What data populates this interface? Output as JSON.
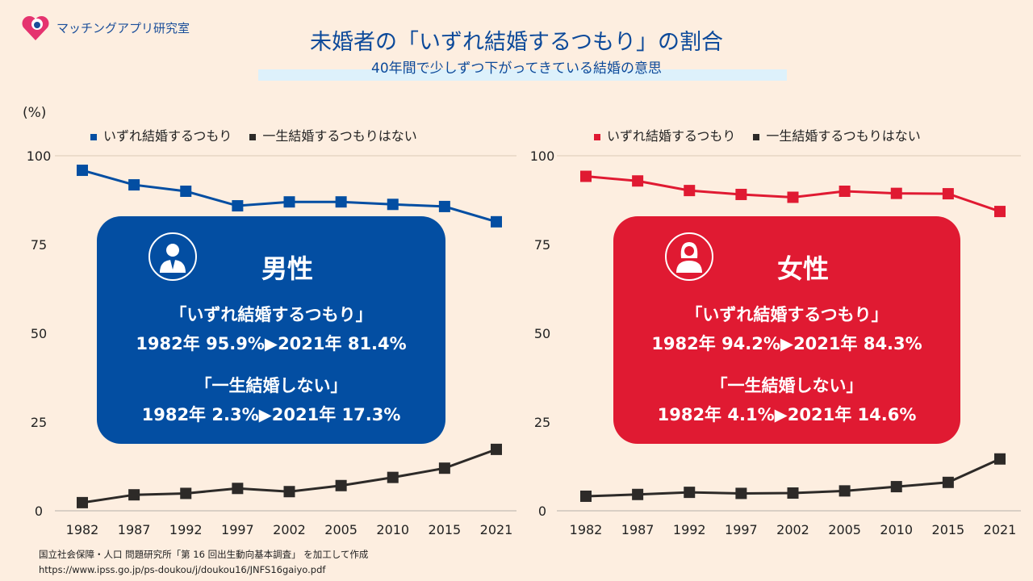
{
  "brand": "マッチングアプリ研究室",
  "title": "未婚者の「いずれ結婚するつもり」の割合",
  "subtitle": "40年間で少しずつ下がってきている結婚の意思",
  "unit": "(%)",
  "colors": {
    "male": "#034ea2",
    "female": "#e01a32",
    "never": "#2d2a28",
    "box_male": "#034ea2",
    "box_female": "#e01a32"
  },
  "male_box": {
    "icon": "man-in-suit-icon",
    "label": "男性",
    "line1": "「いずれ結婚するつもり」",
    "line2": "1982年 95.9%▶2021年 81.4%",
    "line3": "「一生結婚しない」",
    "line4": "1982年 2.3%▶2021年 17.3%"
  },
  "female_box": {
    "icon": "woman-icon",
    "label": "女性",
    "line1": "「いずれ結婚するつもり」",
    "line2": "1982年 94.2%▶2021年 84.3%",
    "line3": "「一生結婚しない」",
    "line4": "1982年 4.1%▶2021年 14.6%"
  },
  "source": {
    "line1": "国立社会保障・人口 問題研究所「第 16 回出生動向基本調査」 を加工して作成",
    "line2": "https://www.ipss.go.jp/ps-doukou/j/doukou16/JNFS16gaiyo.pdf"
  },
  "chart_data": [
    {
      "type": "line",
      "categories": [
        "1982",
        "1987",
        "1992",
        "1997",
        "2002",
        "2005",
        "2010",
        "2015",
        "2021"
      ],
      "ylim": [
        0,
        100
      ],
      "yticks": [
        "0",
        "25",
        "50",
        "75",
        "100"
      ],
      "grid": false,
      "legend": "top",
      "series": [
        {
          "name": "いずれ結婚するつもり",
          "color": "#034ea2",
          "values": [
            95.9,
            91.8,
            90.0,
            85.9,
            87.0,
            87.0,
            86.3,
            85.7,
            81.4
          ]
        },
        {
          "name": "一生結婚するつもりはない",
          "color": "#2d2a28",
          "values": [
            2.3,
            4.5,
            4.9,
            6.3,
            5.4,
            7.1,
            9.4,
            12.0,
            17.3
          ]
        }
      ]
    },
    {
      "type": "line",
      "categories": [
        "1982",
        "1987",
        "1992",
        "1997",
        "2002",
        "2005",
        "2010",
        "2015",
        "2021"
      ],
      "ylim": [
        0,
        100
      ],
      "yticks": [
        "0",
        "25",
        "50",
        "75",
        "100"
      ],
      "grid": false,
      "legend": "top",
      "series": [
        {
          "name": "いずれ結婚するつもり",
          "color": "#e01a32",
          "values": [
            94.2,
            92.9,
            90.2,
            89.1,
            88.3,
            90.0,
            89.4,
            89.3,
            84.3
          ]
        },
        {
          "name": "一生結婚するつもりはない",
          "color": "#2d2a28",
          "values": [
            4.1,
            4.6,
            5.2,
            4.9,
            5.0,
            5.6,
            6.8,
            8.0,
            14.6
          ]
        }
      ]
    }
  ]
}
